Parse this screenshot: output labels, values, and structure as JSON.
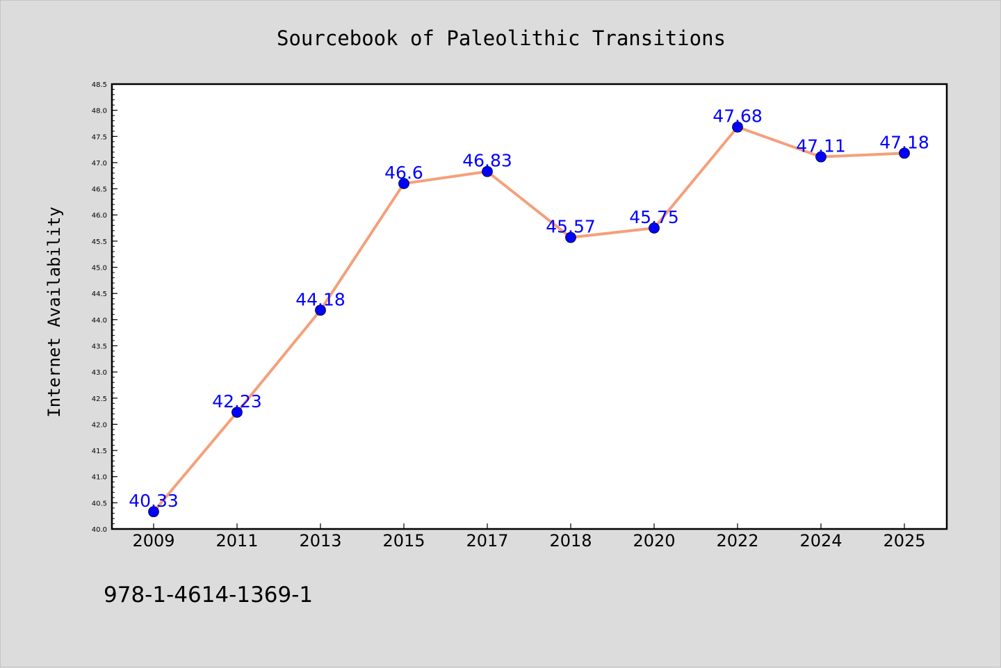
{
  "chart_data": {
    "type": "line",
    "title": "Sourcebook of Paleolithic Transitions",
    "xlabel": "",
    "ylabel": "Internet Availability",
    "categories": [
      "2009",
      "2011",
      "2013",
      "2015",
      "2017",
      "2018",
      "2020",
      "2022",
      "2024",
      "2025"
    ],
    "series": [
      {
        "values": [
          40.33,
          42.23,
          44.18,
          46.6,
          46.83,
          45.57,
          45.75,
          47.68,
          47.11,
          47.18
        ],
        "labels": [
          "40.33",
          "42.23",
          "44.18",
          "46.6",
          "46.83",
          "45.57",
          "45.75",
          "47.68",
          "47.11",
          "47.18"
        ],
        "line_color": "#f4a07a",
        "marker_color": "#0000ff"
      }
    ],
    "ylim": [
      40.0,
      48.5
    ],
    "y_ticks": [
      "40.0",
      "40.5",
      "41.0",
      "41.5",
      "42.0",
      "42.5",
      "43.0",
      "43.5",
      "44.0",
      "44.5",
      "45.0",
      "45.5",
      "46.0",
      "46.5",
      "47.0",
      "47.5",
      "48.0",
      "48.5"
    ],
    "grid": false,
    "legend": "none"
  },
  "footer_text": "978-1-4614-1369-1"
}
